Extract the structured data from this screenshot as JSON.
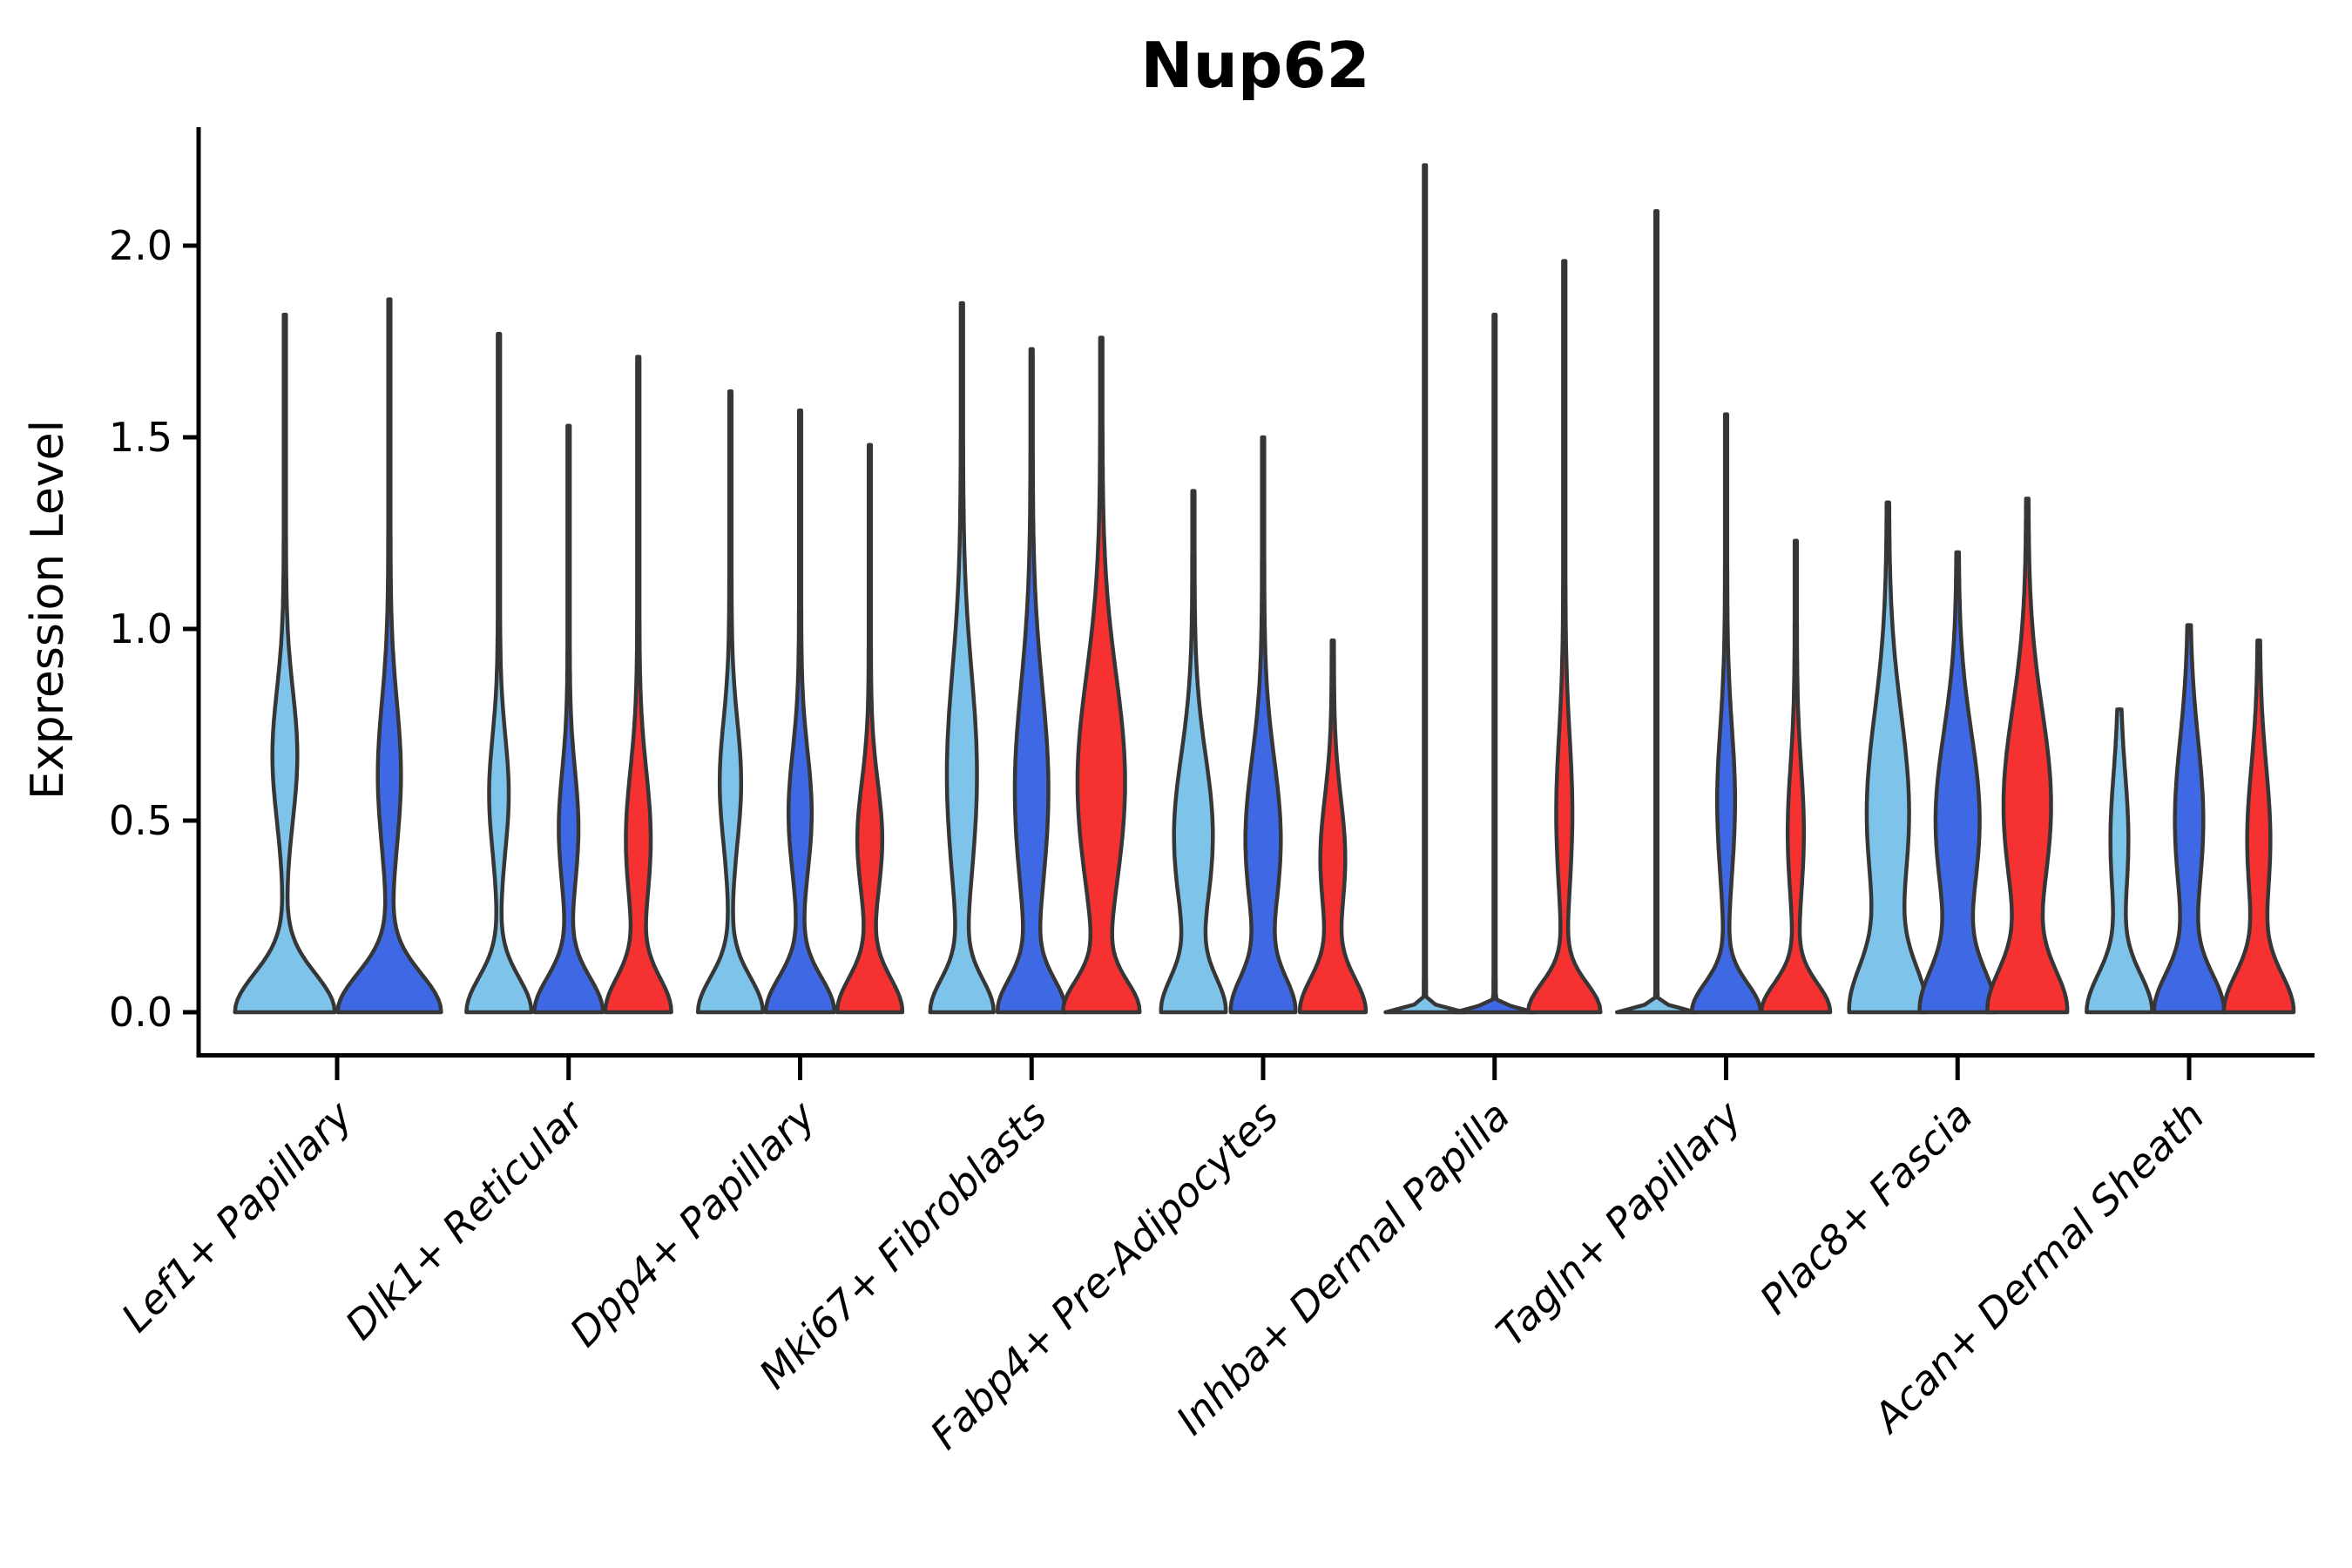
{
  "chart_data": {
    "type": "violin",
    "title": "Nup62",
    "ylabel": "Expression Level",
    "xlabel": "",
    "ylim": [
      -0.11,
      2.31
    ],
    "grid": false,
    "legend": "none",
    "yticks": [
      "0.0",
      "0.5",
      "1.0",
      "1.5",
      "2.0"
    ],
    "ytick_values": [
      0.0,
      0.5,
      1.0,
      1.5,
      2.0
    ],
    "colors": {
      "light_blue": "#7EC3EA",
      "royal_blue": "#3F69E4",
      "red": "#F53131",
      "outline": "#363636",
      "axis": "#000000"
    },
    "categories": [
      "Lef1+ Papillary",
      "Dlk1+ Reticular",
      "Dpp4+ Papillary",
      "Mki67+ Fibroblasts",
      "Fabp4+ Pre-Adipocytes",
      "Inhba+ Dermal Papilla",
      "Tagln+ Papillary",
      "Plac8+ Fascia",
      "Acan+ Dermal Sheath"
    ],
    "groups": [
      {
        "category": "Lef1+ Papillary",
        "violins": [
          {
            "sample": "light_blue",
            "max_expression": 1.82,
            "base_halfwidth": 56,
            "base_sigma": 0.1,
            "bulge_halfwidth": 13,
            "bulge_center": 0.67,
            "bulge_sigma": 0.17
          },
          {
            "sample": "royal_blue",
            "max_expression": 1.86,
            "base_halfwidth": 58,
            "base_sigma": 0.1,
            "bulge_halfwidth": 12,
            "bulge_center": 0.62,
            "bulge_sigma": 0.19
          }
        ]
      },
      {
        "category": "Dlk1+ Reticular",
        "violins": [
          {
            "sample": "light_blue",
            "max_expression": 1.77,
            "base_halfwidth": 36,
            "base_sigma": 0.09,
            "bulge_halfwidth": 10,
            "bulge_center": 0.57,
            "bulge_sigma": 0.15
          },
          {
            "sample": "royal_blue",
            "max_expression": 1.53,
            "base_halfwidth": 38,
            "base_sigma": 0.09,
            "bulge_halfwidth": 10,
            "bulge_center": 0.48,
            "bulge_sigma": 0.15
          },
          {
            "sample": "red",
            "max_expression": 1.71,
            "base_halfwidth": 36,
            "base_sigma": 0.09,
            "bulge_halfwidth": 13,
            "bulge_center": 0.45,
            "bulge_sigma": 0.18
          }
        ]
      },
      {
        "category": "Dpp4+ Papillary",
        "violins": [
          {
            "sample": "light_blue",
            "max_expression": 1.62,
            "base_halfwidth": 36,
            "base_sigma": 0.09,
            "bulge_halfwidth": 11,
            "bulge_center": 0.6,
            "bulge_sigma": 0.16
          },
          {
            "sample": "royal_blue",
            "max_expression": 1.57,
            "base_halfwidth": 38,
            "base_sigma": 0.09,
            "bulge_halfwidth": 12,
            "bulge_center": 0.52,
            "bulge_sigma": 0.16
          },
          {
            "sample": "red",
            "max_expression": 1.48,
            "base_halfwidth": 36,
            "base_sigma": 0.09,
            "bulge_halfwidth": 13,
            "bulge_center": 0.45,
            "bulge_sigma": 0.15
          }
        ]
      },
      {
        "category": "Mki67+ Fibroblasts",
        "violins": [
          {
            "sample": "light_blue",
            "max_expression": 1.85,
            "base_halfwidth": 34,
            "base_sigma": 0.085,
            "bulge_halfwidth": 16,
            "bulge_center": 0.62,
            "bulge_sigma": 0.27
          },
          {
            "sample": "royal_blue",
            "max_expression": 1.73,
            "base_halfwidth": 36,
            "base_sigma": 0.085,
            "bulge_halfwidth": 18,
            "bulge_center": 0.58,
            "bulge_sigma": 0.27
          },
          {
            "sample": "red",
            "max_expression": 1.76,
            "base_halfwidth": 40,
            "base_sigma": 0.08,
            "bulge_halfwidth": 26,
            "bulge_center": 0.6,
            "bulge_sigma": 0.28
          }
        ]
      },
      {
        "category": "Fabp4+ Pre-Adipocytes",
        "violins": [
          {
            "sample": "light_blue",
            "max_expression": 1.36,
            "base_halfwidth": 34,
            "base_sigma": 0.09,
            "bulge_halfwidth": 21,
            "bulge_center": 0.46,
            "bulge_sigma": 0.21
          },
          {
            "sample": "royal_blue",
            "max_expression": 1.5,
            "base_halfwidth": 34,
            "base_sigma": 0.09,
            "bulge_halfwidth": 19,
            "bulge_center": 0.45,
            "bulge_sigma": 0.21
          },
          {
            "sample": "red",
            "max_expression": 0.97,
            "base_halfwidth": 36,
            "base_sigma": 0.09,
            "bulge_halfwidth": 13,
            "bulge_center": 0.4,
            "bulge_sigma": 0.16
          }
        ]
      },
      {
        "category": "Inhba+ Dermal Papilla",
        "violins": [
          {
            "sample": "light_blue",
            "max_expression": 2.21,
            "base_halfwidth": 44,
            "base_sigma": 0.012,
            "bulge_halfwidth": 0,
            "bulge_center": 0.5,
            "bulge_sigma": 0.2
          },
          {
            "sample": "royal_blue",
            "max_expression": 1.82,
            "base_halfwidth": 44,
            "base_sigma": 0.012,
            "bulge_halfwidth": 0,
            "bulge_center": 0.5,
            "bulge_sigma": 0.2
          },
          {
            "sample": "red",
            "max_expression": 1.96,
            "base_halfwidth": 40,
            "base_sigma": 0.075,
            "bulge_halfwidth": 8,
            "bulge_center": 0.52,
            "bulge_sigma": 0.2
          }
        ]
      },
      {
        "category": "Tagln+ Papillary",
        "violins": [
          {
            "sample": "light_blue",
            "max_expression": 2.09,
            "base_halfwidth": 44,
            "base_sigma": 0.012,
            "bulge_halfwidth": 0,
            "bulge_center": 0.5,
            "bulge_sigma": 0.2
          },
          {
            "sample": "royal_blue",
            "max_expression": 1.56,
            "base_halfwidth": 38,
            "base_sigma": 0.075,
            "bulge_halfwidth": 9,
            "bulge_center": 0.55,
            "bulge_sigma": 0.19
          },
          {
            "sample": "red",
            "max_expression": 1.23,
            "base_halfwidth": 38,
            "base_sigma": 0.075,
            "bulge_halfwidth": 8,
            "bulge_center": 0.47,
            "bulge_sigma": 0.17
          }
        ]
      },
      {
        "category": "Plac8+ Fascia",
        "violins": [
          {
            "sample": "light_blue",
            "max_expression": 1.33,
            "base_halfwidth": 40,
            "base_sigma": 0.12,
            "bulge_halfwidth": 23,
            "bulge_center": 0.52,
            "bulge_sigma": 0.26
          },
          {
            "sample": "royal_blue",
            "max_expression": 1.2,
            "base_halfwidth": 40,
            "base_sigma": 0.11,
            "bulge_halfwidth": 24,
            "bulge_center": 0.5,
            "bulge_sigma": 0.23
          },
          {
            "sample": "red",
            "max_expression": 1.34,
            "base_halfwidth": 42,
            "base_sigma": 0.11,
            "bulge_halfwidth": 26,
            "bulge_center": 0.54,
            "bulge_sigma": 0.25
          }
        ]
      },
      {
        "category": "Acan+ Dermal Sheath",
        "violins": [
          {
            "sample": "light_blue",
            "max_expression": 0.79,
            "base_halfwidth": 36,
            "base_sigma": 0.1,
            "bulge_halfwidth": 9,
            "bulge_center": 0.45,
            "bulge_sigma": 0.17
          },
          {
            "sample": "royal_blue",
            "max_expression": 1.01,
            "base_halfwidth": 38,
            "base_sigma": 0.1,
            "bulge_halfwidth": 15,
            "bulge_center": 0.5,
            "bulge_sigma": 0.21
          },
          {
            "sample": "red",
            "max_expression": 0.97,
            "base_halfwidth": 38,
            "base_sigma": 0.1,
            "bulge_halfwidth": 12,
            "bulge_center": 0.45,
            "bulge_sigma": 0.19
          }
        ]
      }
    ]
  }
}
